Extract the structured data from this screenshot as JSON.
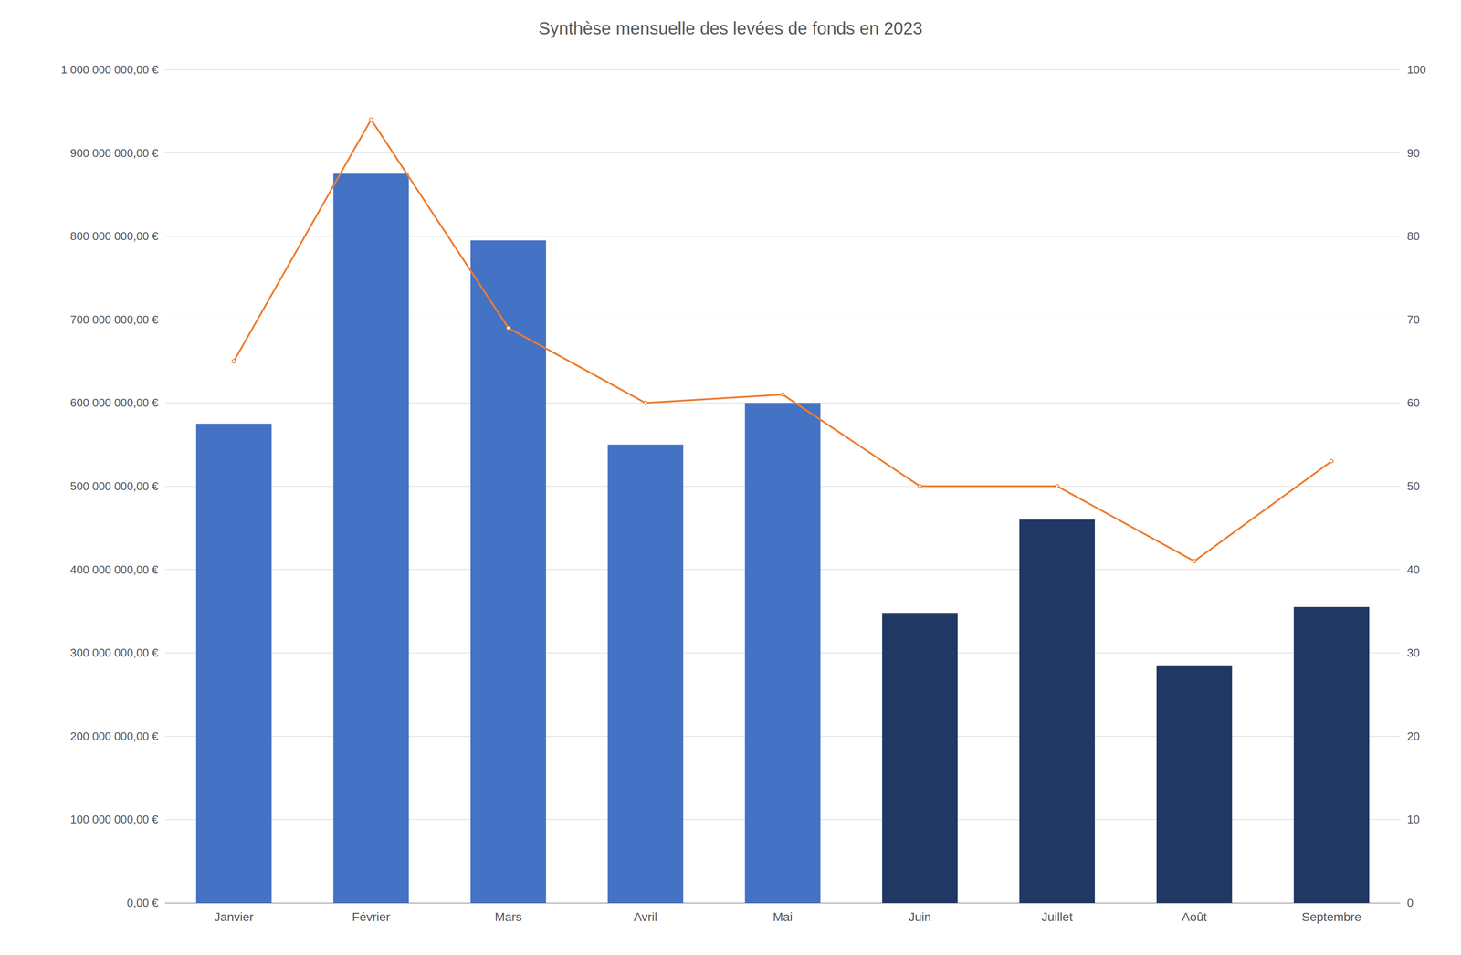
{
  "chart_data": {
    "type": "bar",
    "title": "Synthèse mensuelle des levées de fonds en 2023",
    "categories": [
      "Janvier",
      "Février",
      "Mars",
      "Avril",
      "Mai",
      "Juin",
      "Juillet",
      "Août",
      "Septembre"
    ],
    "series": [
      {
        "type": "bar",
        "colors": [
          "#4472C4",
          "#4472C4",
          "#4472C4",
          "#4472C4",
          "#4472C4",
          "#1F3864",
          "#1F3864",
          "#1F3864",
          "#1F3864"
        ],
        "values": [
          575000000,
          875000000,
          795000000,
          550000000,
          600000000,
          348000000,
          460000000,
          285000000,
          355000000
        ]
      },
      {
        "type": "line",
        "axis": "y2",
        "color": "#ED7D31",
        "values": [
          65,
          94,
          69,
          60,
          61,
          50,
          50,
          41,
          53
        ]
      }
    ],
    "ylim": [
      0,
      1000000000
    ],
    "yticks": [
      {
        "value": 0,
        "label": "0,00 €"
      },
      {
        "value": 100000000,
        "label": "100 000 000,00 €"
      },
      {
        "value": 200000000,
        "label": "200 000 000,00 €"
      },
      {
        "value": 300000000,
        "label": "300 000 000,00 €"
      },
      {
        "value": 400000000,
        "label": "400 000 000,00 €"
      },
      {
        "value": 500000000,
        "label": "500 000 000,00 €"
      },
      {
        "value": 600000000,
        "label": "600 000 000,00 €"
      },
      {
        "value": 700000000,
        "label": "700 000 000,00 €"
      },
      {
        "value": 800000000,
        "label": "800 000 000,00 €"
      },
      {
        "value": 900000000,
        "label": "900 000 000,00 €"
      },
      {
        "value": 1000000000,
        "label": "1 000 000 000,00 €"
      }
    ],
    "y2lim": [
      0,
      100
    ],
    "y2ticks": [
      0,
      10,
      20,
      30,
      40,
      50,
      60,
      70,
      80,
      90,
      100
    ],
    "grid": true
  }
}
